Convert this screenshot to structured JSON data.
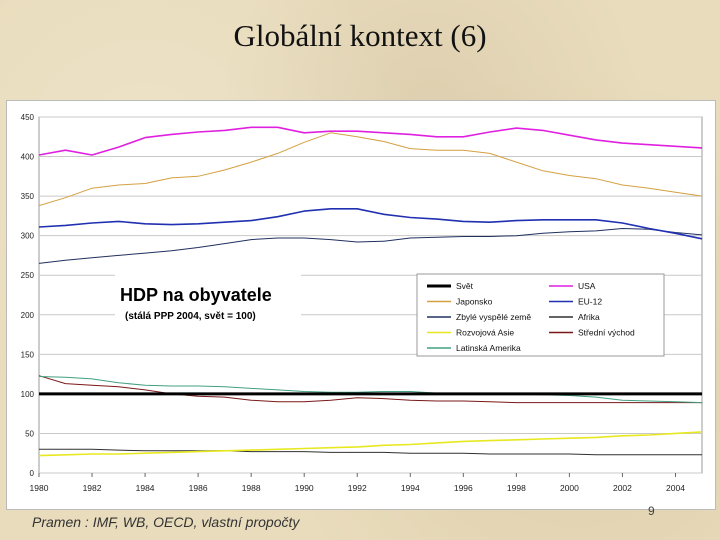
{
  "slide": {
    "title": "Globální kontext (6)",
    "source": "Pramen : IMF, WB, OECD, vlastní propočty",
    "page_number": "9"
  },
  "chart_data": {
    "type": "line",
    "title": "HDP na obyvatele",
    "subtitle": "(stálá PPP 2004, svět = 100)",
    "xlabel": "",
    "ylabel": "",
    "xlim": [
      1980,
      2005
    ],
    "ylim": [
      0,
      450
    ],
    "x_ticks": [
      "1980",
      "1982",
      "1984",
      "1986",
      "1988",
      "1990",
      "1992",
      "1994",
      "1996",
      "1998",
      "2000",
      "2002",
      "2004"
    ],
    "y_ticks": [
      "0",
      "50",
      "100",
      "150",
      "200",
      "250",
      "300",
      "350",
      "400",
      "450"
    ],
    "grid": "horizontal",
    "legend_position": "center-right",
    "x": [
      1980,
      1981,
      1982,
      1983,
      1984,
      1985,
      1986,
      1987,
      1988,
      1989,
      1990,
      1991,
      1992,
      1993,
      1994,
      1995,
      1996,
      1997,
      1998,
      1999,
      2000,
      2001,
      2002,
      2003,
      2004,
      2005
    ],
    "series": [
      {
        "name": "Svět",
        "color": "#000000",
        "width": 3,
        "values": [
          100,
          100,
          100,
          100,
          100,
          100,
          100,
          100,
          100,
          100,
          100,
          100,
          100,
          100,
          100,
          100,
          100,
          100,
          100,
          100,
          100,
          100,
          100,
          100,
          100,
          100
        ]
      },
      {
        "name": "USA",
        "color": "#e020e0",
        "width": 1.6,
        "values": [
          402,
          408,
          402,
          412,
          424,
          428,
          431,
          433,
          437,
          437,
          430,
          432,
          432,
          430,
          428,
          425,
          425,
          431,
          436,
          433,
          427,
          421,
          417,
          415,
          413,
          411
        ]
      },
      {
        "name": "Japonsko",
        "color": "#d4a040",
        "width": 1,
        "values": [
          338,
          348,
          360,
          364,
          366,
          373,
          375,
          383,
          393,
          404,
          418,
          430,
          425,
          419,
          410,
          408,
          408,
          404,
          393,
          382,
          376,
          372,
          364,
          360,
          355,
          350
        ]
      },
      {
        "name": "EU-12",
        "color": "#2030b0",
        "width": 1.6,
        "values": [
          311,
          313,
          316,
          318,
          315,
          314,
          315,
          317,
          319,
          324,
          331,
          334,
          334,
          327,
          323,
          321,
          318,
          317,
          319,
          320,
          320,
          320,
          316,
          309,
          303,
          296
        ]
      },
      {
        "name": "Zbylé vyspělé země",
        "color": "#203060",
        "width": 1,
        "values": [
          265,
          269,
          272,
          275,
          278,
          281,
          285,
          290,
          295,
          297,
          297,
          295,
          292,
          293,
          297,
          298,
          299,
          299,
          300,
          303,
          305,
          306,
          309,
          308,
          304,
          301
        ]
      },
      {
        "name": "Afrika",
        "color": "#303030",
        "width": 1,
        "values": [
          30,
          30,
          30,
          29,
          28,
          28,
          28,
          28,
          27,
          27,
          27,
          26,
          26,
          26,
          25,
          25,
          25,
          24,
          24,
          24,
          24,
          23,
          23,
          23,
          23,
          23
        ]
      },
      {
        "name": "Rozvojová Asie",
        "color": "#e8e820",
        "width": 1.6,
        "values": [
          22,
          23,
          24,
          24,
          25,
          26,
          27,
          28,
          29,
          30,
          31,
          32,
          33,
          35,
          36,
          38,
          40,
          41,
          42,
          43,
          44,
          45,
          47,
          48,
          50,
          52
        ]
      },
      {
        "name": "Střední východ",
        "color": "#7a1818",
        "width": 1,
        "values": [
          123,
          113,
          111,
          109,
          105,
          100,
          97,
          96,
          92,
          90,
          90,
          92,
          95,
          94,
          92,
          91,
          91,
          90,
          89,
          89,
          89,
          89,
          89,
          89,
          89,
          89
        ]
      },
      {
        "name": "Latinská Amerika",
        "color": "#40a080",
        "width": 1,
        "values": [
          122,
          121,
          119,
          114,
          111,
          110,
          110,
          109,
          107,
          105,
          103,
          102,
          102,
          103,
          103,
          101,
          101,
          101,
          100,
          99,
          98,
          96,
          92,
          91,
          90,
          89
        ]
      }
    ]
  }
}
